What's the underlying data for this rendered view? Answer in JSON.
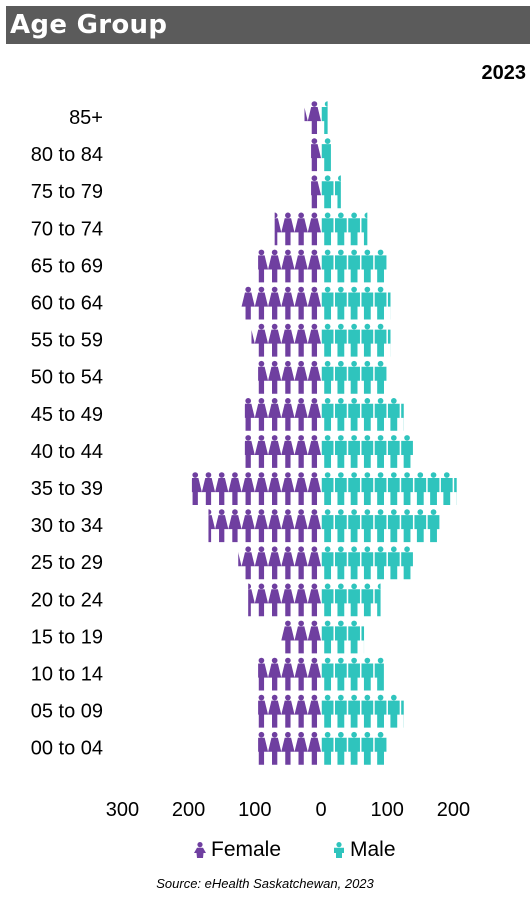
{
  "header": {
    "title": "Age Group",
    "year": "2023"
  },
  "colors": {
    "female": "#6f3fa0",
    "male": "#2fc4bd",
    "title_bg": "#5b5b5b"
  },
  "legend": {
    "female_label": "Female",
    "male_label": "Male",
    "female_icon": "female-person-icon",
    "male_icon": "male-person-icon"
  },
  "source": "Source: eHealth Saskatchewan, 2023",
  "chart_data": {
    "type": "bar",
    "orientation": "horizontal-population-pyramid",
    "categories": [
      "85+",
      "80 to 84",
      "75 to 79",
      "70 to 74",
      "65 to 69",
      "60 to 64",
      "55 to 59",
      "50 to 54",
      "45 to 49",
      "40 to 44",
      "35 to 39",
      "30 to 34",
      "25 to 29",
      "20 to 24",
      "15 to 19",
      "10 to 14",
      "05 to 09",
      "00 to 04"
    ],
    "series": [
      {
        "name": "Female",
        "values": [
          25,
          15,
          15,
          70,
          95,
          120,
          105,
          95,
          115,
          115,
          195,
          170,
          125,
          110,
          60,
          95,
          95,
          95
        ]
      },
      {
        "name": "Male",
        "values": [
          10,
          15,
          30,
          70,
          100,
          105,
          105,
          100,
          125,
          140,
          205,
          180,
          140,
          90,
          65,
          95,
          125,
          100
        ]
      }
    ],
    "xlim": [
      -300,
      200
    ],
    "x_ticks": [
      {
        "value": -300,
        "label": "300"
      },
      {
        "value": -200,
        "label": "200"
      },
      {
        "value": -100,
        "label": "100"
      },
      {
        "value": 0,
        "label": "0"
      },
      {
        "value": 100,
        "label": "100"
      },
      {
        "value": 200,
        "label": "200"
      }
    ],
    "unit_per_icon": 20,
    "grid": false,
    "legend_position": "bottom"
  }
}
